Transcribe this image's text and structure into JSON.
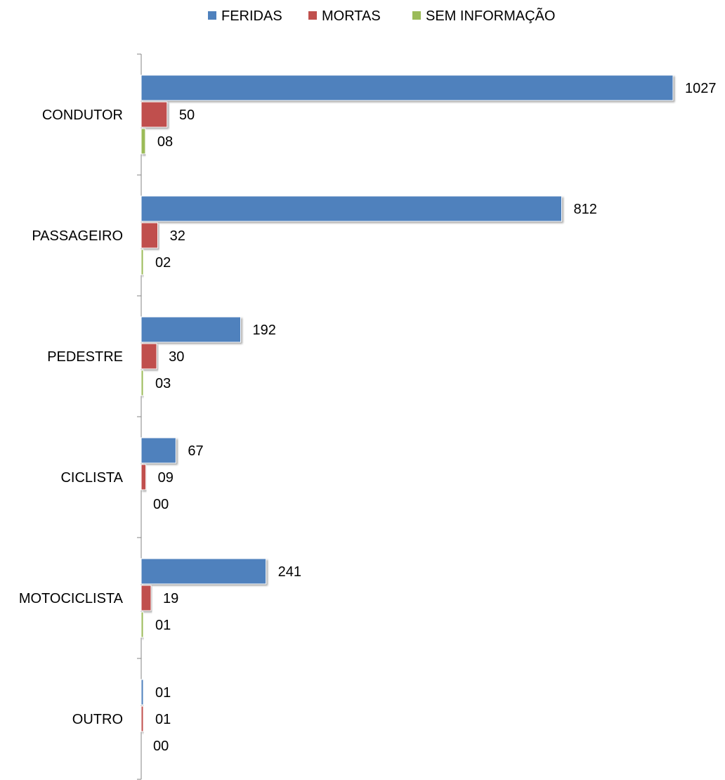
{
  "chart_data": {
    "type": "bar",
    "orientation": "horizontal",
    "title": "",
    "xlabel": "",
    "ylabel": "",
    "categories": [
      "CONDUTOR",
      "PASSAGEIRO",
      "PEDESTRE",
      "CICLISTA",
      "MOTOCICLISTA",
      "OUTRO"
    ],
    "series": [
      {
        "name": "FERIDAS",
        "color": "#4F81BD",
        "values": [
          1027,
          812,
          192,
          67,
          241,
          1
        ],
        "labels": [
          "1027",
          "812",
          "192",
          "67",
          "241",
          "01"
        ]
      },
      {
        "name": "MORTAS",
        "color": "#C0504D",
        "values": [
          50,
          32,
          30,
          9,
          19,
          1
        ],
        "labels": [
          "50",
          "32",
          "30",
          "09",
          "19",
          "01"
        ]
      },
      {
        "name": "SEM INFORMAÇÃO",
        "color": "#9BBB59",
        "values": [
          8,
          2,
          3,
          0,
          1,
          0
        ],
        "labels": [
          "08",
          "02",
          "03",
          "00",
          "01",
          "00"
        ]
      }
    ],
    "xlim": [
      0,
      1027
    ],
    "grid": false,
    "legend": "top-center"
  }
}
